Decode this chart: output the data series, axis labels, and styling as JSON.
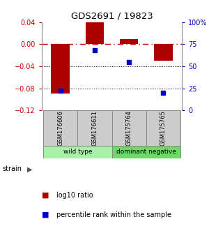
{
  "title": "GDS2691 / 19823",
  "samples": [
    "GSM176606",
    "GSM176611",
    "GSM175764",
    "GSM175765"
  ],
  "log10_ratio": [
    -0.09,
    0.04,
    0.01,
    -0.03
  ],
  "percentile_rank": [
    22,
    68,
    55,
    20
  ],
  "bar_color": "#aa0000",
  "dot_color": "#0000cc",
  "ylim_left": [
    -0.12,
    0.04
  ],
  "ylim_right": [
    0,
    100
  ],
  "yticks_left": [
    0.04,
    0.0,
    -0.04,
    -0.08,
    -0.12
  ],
  "yticks_right": [
    100,
    75,
    50,
    25,
    0
  ],
  "groups": [
    {
      "label": "wild type",
      "samples": [
        0,
        1
      ],
      "color": "#aaf0aa"
    },
    {
      "label": "dominant negative",
      "samples": [
        2,
        3
      ],
      "color": "#66dd66"
    }
  ],
  "strain_label": "strain",
  "legend_bar_label": "log10 ratio",
  "legend_dot_label": "percentile rank within the sample",
  "hline_color": "#cc0000",
  "dotline_color": "#000000",
  "background_color": "#ffffff",
  "bar_width": 0.55,
  "table_bg": "#cccccc",
  "table_edge": "#888888"
}
